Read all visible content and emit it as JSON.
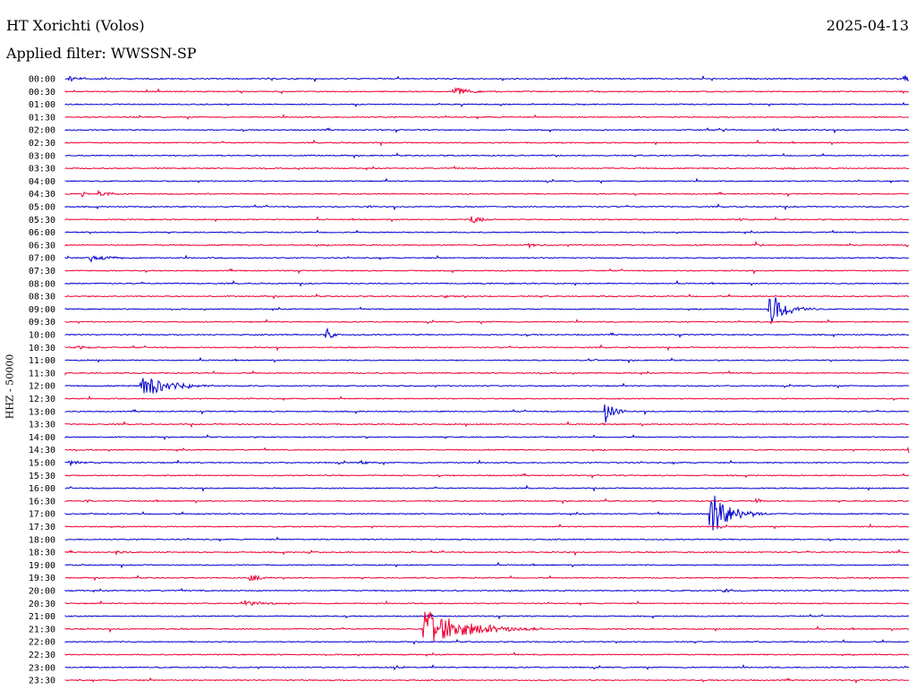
{
  "header": {
    "station": "HT Xorichti (Volos)",
    "date": "2025-04-13",
    "filter": "Applied filter: WWSSN-SP"
  },
  "channel": {
    "label": "HHZ - 50000"
  },
  "colors": {
    "even_trace": "#0000cc",
    "odd_trace": "#ee0033",
    "text": "#000000"
  },
  "rows": [
    {
      "time": "00:00",
      "events": [
        [
          0.5,
          4,
          3
        ],
        [
          99.5,
          4,
          3
        ]
      ]
    },
    {
      "time": "00:30",
      "events": [
        [
          46,
          5,
          6
        ]
      ]
    },
    {
      "time": "01:00",
      "events": []
    },
    {
      "time": "01:30",
      "events": []
    },
    {
      "time": "02:00",
      "events": [
        [
          78,
          2,
          2
        ],
        [
          84,
          2,
          2
        ]
      ]
    },
    {
      "time": "02:30",
      "events": []
    },
    {
      "time": "03:00",
      "events": []
    },
    {
      "time": "03:30",
      "events": []
    },
    {
      "time": "04:00",
      "events": []
    },
    {
      "time": "04:30",
      "events": [
        [
          2,
          6,
          1
        ],
        [
          4,
          5,
          4
        ]
      ]
    },
    {
      "time": "05:00",
      "events": [
        [
          36,
          2,
          1
        ]
      ]
    },
    {
      "time": "05:30",
      "events": [
        [
          48,
          5,
          4
        ],
        [
          80,
          2,
          2
        ]
      ]
    },
    {
      "time": "06:00",
      "events": []
    },
    {
      "time": "06:30",
      "events": [
        [
          55,
          3,
          2
        ],
        [
          82,
          3,
          2
        ]
      ]
    },
    {
      "time": "07:00",
      "events": [
        [
          3,
          4,
          6
        ]
      ]
    },
    {
      "time": "07:30",
      "events": []
    },
    {
      "time": "08:00",
      "events": []
    },
    {
      "time": "08:30",
      "events": [
        [
          45,
          2,
          3
        ]
      ]
    },
    {
      "time": "09:00",
      "events": [
        [
          83.5,
          20,
          6
        ]
      ]
    },
    {
      "time": "09:30",
      "events": []
    },
    {
      "time": "10:00",
      "events": [
        [
          31,
          8,
          2
        ]
      ]
    },
    {
      "time": "10:30",
      "events": [
        [
          1.5,
          3,
          3
        ]
      ]
    },
    {
      "time": "11:00",
      "events": [
        [
          62,
          2,
          3
        ]
      ]
    },
    {
      "time": "11:30",
      "events": []
    },
    {
      "time": "12:00",
      "events": [
        [
          9,
          14,
          9
        ]
      ]
    },
    {
      "time": "12:30",
      "events": []
    },
    {
      "time": "13:00",
      "events": [
        [
          64,
          15,
          3
        ]
      ]
    },
    {
      "time": "13:30",
      "events": []
    },
    {
      "time": "14:00",
      "events": []
    },
    {
      "time": "14:30",
      "events": [
        [
          100,
          3,
          1
        ]
      ]
    },
    {
      "time": "15:00",
      "events": [
        [
          0.5,
          3,
          4
        ],
        [
          35,
          2,
          2
        ]
      ]
    },
    {
      "time": "15:30",
      "events": []
    },
    {
      "time": "16:00",
      "events": []
    },
    {
      "time": "16:30",
      "events": [
        [
          2.5,
          4,
          1
        ],
        [
          82,
          4,
          1
        ]
      ]
    },
    {
      "time": "17:00",
      "events": [
        [
          76.5,
          26,
          7
        ]
      ]
    },
    {
      "time": "17:30",
      "events": []
    },
    {
      "time": "18:00",
      "events": []
    },
    {
      "time": "18:30",
      "events": [
        [
          6,
          3,
          2
        ],
        [
          29,
          2,
          2
        ]
      ]
    },
    {
      "time": "19:00",
      "events": []
    },
    {
      "time": "19:30",
      "events": [
        [
          22,
          5,
          3
        ]
      ]
    },
    {
      "time": "20:00",
      "events": [
        [
          78,
          3,
          3
        ]
      ]
    },
    {
      "time": "20:30",
      "events": [
        [
          21,
          4,
          6
        ]
      ]
    },
    {
      "time": "21:00",
      "events": []
    },
    {
      "time": "21:30",
      "events": [
        [
          42.5,
          22,
          14
        ]
      ]
    },
    {
      "time": "22:00",
      "events": []
    },
    {
      "time": "22:30",
      "events": []
    },
    {
      "time": "23:00",
      "events": [
        [
          39,
          3,
          3
        ]
      ]
    },
    {
      "time": "23:30",
      "events": []
    }
  ]
}
